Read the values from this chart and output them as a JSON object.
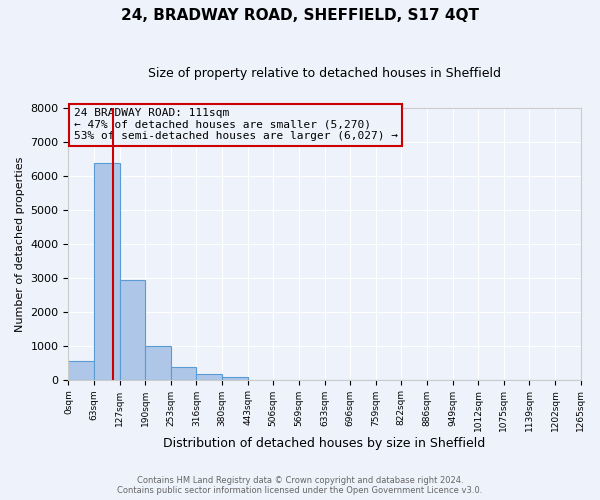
{
  "title": "24, BRADWAY ROAD, SHEFFIELD, S17 4QT",
  "subtitle": "Size of property relative to detached houses in Sheffield",
  "xlabel": "Distribution of detached houses by size in Sheffield",
  "ylabel": "Number of detached properties",
  "bar_edges": [
    0,
    63,
    127,
    190,
    253,
    316,
    380,
    443,
    506,
    569,
    633,
    696,
    759,
    822,
    886,
    949,
    1012,
    1075,
    1139,
    1202,
    1265
  ],
  "bar_heights": [
    550,
    6370,
    2930,
    980,
    380,
    155,
    80,
    0,
    0,
    0,
    0,
    0,
    0,
    0,
    0,
    0,
    0,
    0,
    0,
    0
  ],
  "bar_color": "#aec7e8",
  "bar_edge_color": "#5b9bd5",
  "vline_x": 111,
  "vline_color": "#cc0000",
  "annotation_title": "24 BRADWAY ROAD: 111sqm",
  "annotation_line1": "← 47% of detached houses are smaller (5,270)",
  "annotation_line2": "53% of semi-detached houses are larger (6,027) →",
  "annotation_box_color": "#cc0000",
  "ylim": [
    0,
    8000
  ],
  "yticks": [
    0,
    1000,
    2000,
    3000,
    4000,
    5000,
    6000,
    7000,
    8000
  ],
  "xtick_labels": [
    "0sqm",
    "63sqm",
    "127sqm",
    "190sqm",
    "253sqm",
    "316sqm",
    "380sqm",
    "443sqm",
    "506sqm",
    "569sqm",
    "633sqm",
    "696sqm",
    "759sqm",
    "822sqm",
    "886sqm",
    "949sqm",
    "1012sqm",
    "1075sqm",
    "1139sqm",
    "1202sqm",
    "1265sqm"
  ],
  "footer_line1": "Contains HM Land Registry data © Crown copyright and database right 2024.",
  "footer_line2": "Contains public sector information licensed under the Open Government Licence v3.0.",
  "bg_color": "#eef2fb",
  "grid_color": "#ffffff"
}
